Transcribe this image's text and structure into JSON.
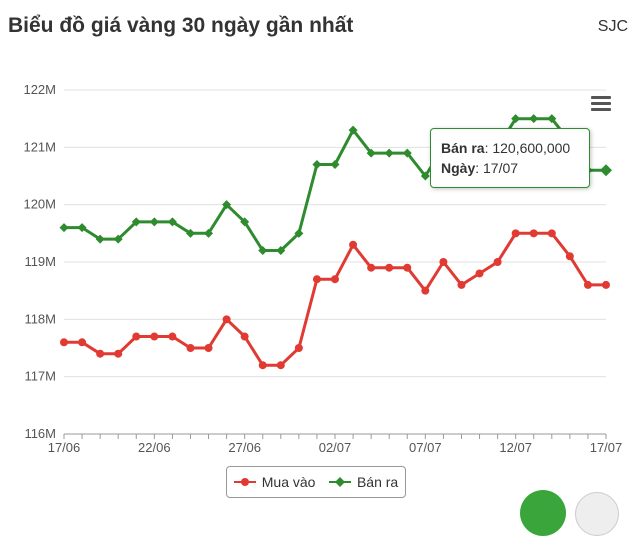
{
  "header": {
    "title": "Biểu đồ giá vàng 30 ngày gần nhất",
    "brand": "SJC"
  },
  "tooltip": {
    "sell_label": "Bán ra",
    "sell_value": "120,600,000",
    "day_label": "Ngày",
    "day_value": "17/07"
  },
  "menu": {
    "icon": "hamburger-menu-icon"
  },
  "chart_data": {
    "type": "line",
    "title": "Biểu đồ giá vàng 30 ngày gần nhất",
    "xlabel": "",
    "ylabel": "",
    "x": [
      "17/06",
      "18/06",
      "19/06",
      "20/06",
      "21/06",
      "22/06",
      "23/06",
      "24/06",
      "25/06",
      "26/06",
      "27/06",
      "28/06",
      "29/06",
      "30/06",
      "01/07",
      "02/07",
      "03/07",
      "04/07",
      "05/07",
      "06/07",
      "07/07",
      "08/07",
      "09/07",
      "10/07",
      "11/07",
      "12/07",
      "13/07",
      "14/07",
      "15/07",
      "16/07",
      "17/07"
    ],
    "x_tick_labels": [
      "17/06",
      "22/06",
      "27/06",
      "02/07",
      "07/07",
      "12/07",
      "17/07"
    ],
    "y_tick_labels": [
      "116M",
      "117M",
      "118M",
      "119M",
      "120M",
      "121M",
      "122M"
    ],
    "ylim": [
      116,
      122
    ],
    "y_unit": "M",
    "grid": true,
    "legend_position": "bottom",
    "series": [
      {
        "name": "Mua vào",
        "color": "#e03a33",
        "marker": "circle",
        "values": [
          117.6,
          117.6,
          117.4,
          117.4,
          117.7,
          117.7,
          117.7,
          117.5,
          117.5,
          118.0,
          117.7,
          117.2,
          117.2,
          117.5,
          118.7,
          118.7,
          119.3,
          118.9,
          118.9,
          118.9,
          118.5,
          119.0,
          118.6,
          118.8,
          119.0,
          119.5,
          119.5,
          119.5,
          119.1,
          118.6,
          118.6
        ]
      },
      {
        "name": "Bán ra",
        "color": "#2e8b2e",
        "marker": "diamond",
        "values": [
          119.6,
          119.6,
          119.4,
          119.4,
          119.7,
          119.7,
          119.7,
          119.5,
          119.5,
          120.0,
          119.7,
          119.2,
          119.2,
          119.5,
          120.7,
          120.7,
          121.3,
          120.9,
          120.9,
          120.9,
          120.5,
          121.0,
          120.6,
          120.8,
          121.0,
          121.5,
          121.5,
          121.5,
          121.1,
          120.6,
          120.6
        ]
      }
    ]
  }
}
